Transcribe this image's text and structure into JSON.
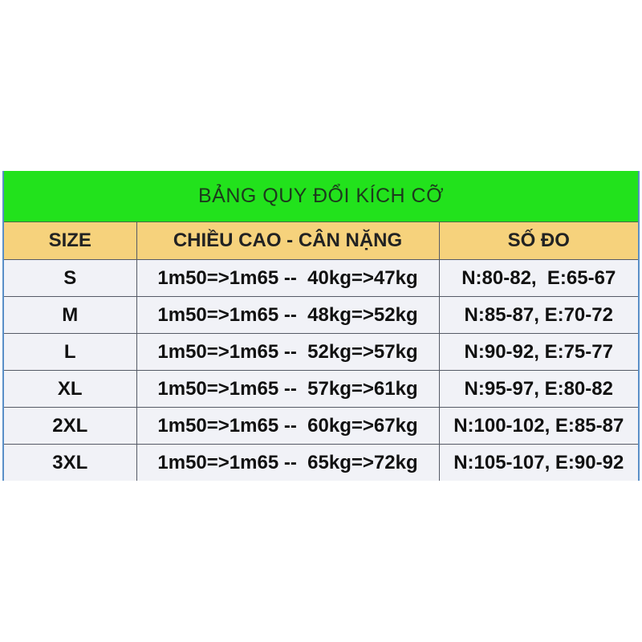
{
  "title": "BẢNG QUY ĐỔI KÍCH CỠ",
  "columns": [
    "SIZE",
    "CHIỀU CAO - CÂN NẶNG",
    "SỐ ĐO"
  ],
  "rows": [
    {
      "size": "S",
      "height_weight": "1m50=>1m65 --  40kg=>47kg",
      "measure": "N:80-82,  E:65-67"
    },
    {
      "size": "M",
      "height_weight": "1m50=>1m65 --  48kg=>52kg",
      "measure": "N:85-87, E:70-72"
    },
    {
      "size": "L",
      "height_weight": "1m50=>1m65 --  52kg=>57kg",
      "measure": "N:90-92, E:75-77"
    },
    {
      "size": "XL",
      "height_weight": "1m50=>1m65 --  57kg=>61kg",
      "measure": "N:95-97, E:80-82"
    },
    {
      "size": "2XL",
      "height_weight": "1m50=>1m65 --  60kg=>67kg",
      "measure": "N:100-102, E:85-87"
    },
    {
      "size": "3XL",
      "height_weight": "1m50=>1m65 --  65kg=>72kg",
      "measure": "N:105-107, E:90-92"
    }
  ],
  "colors": {
    "title_bg": "#22e21c",
    "header_bg": "#f6d27c",
    "body_bg": "#f1f2f7"
  }
}
